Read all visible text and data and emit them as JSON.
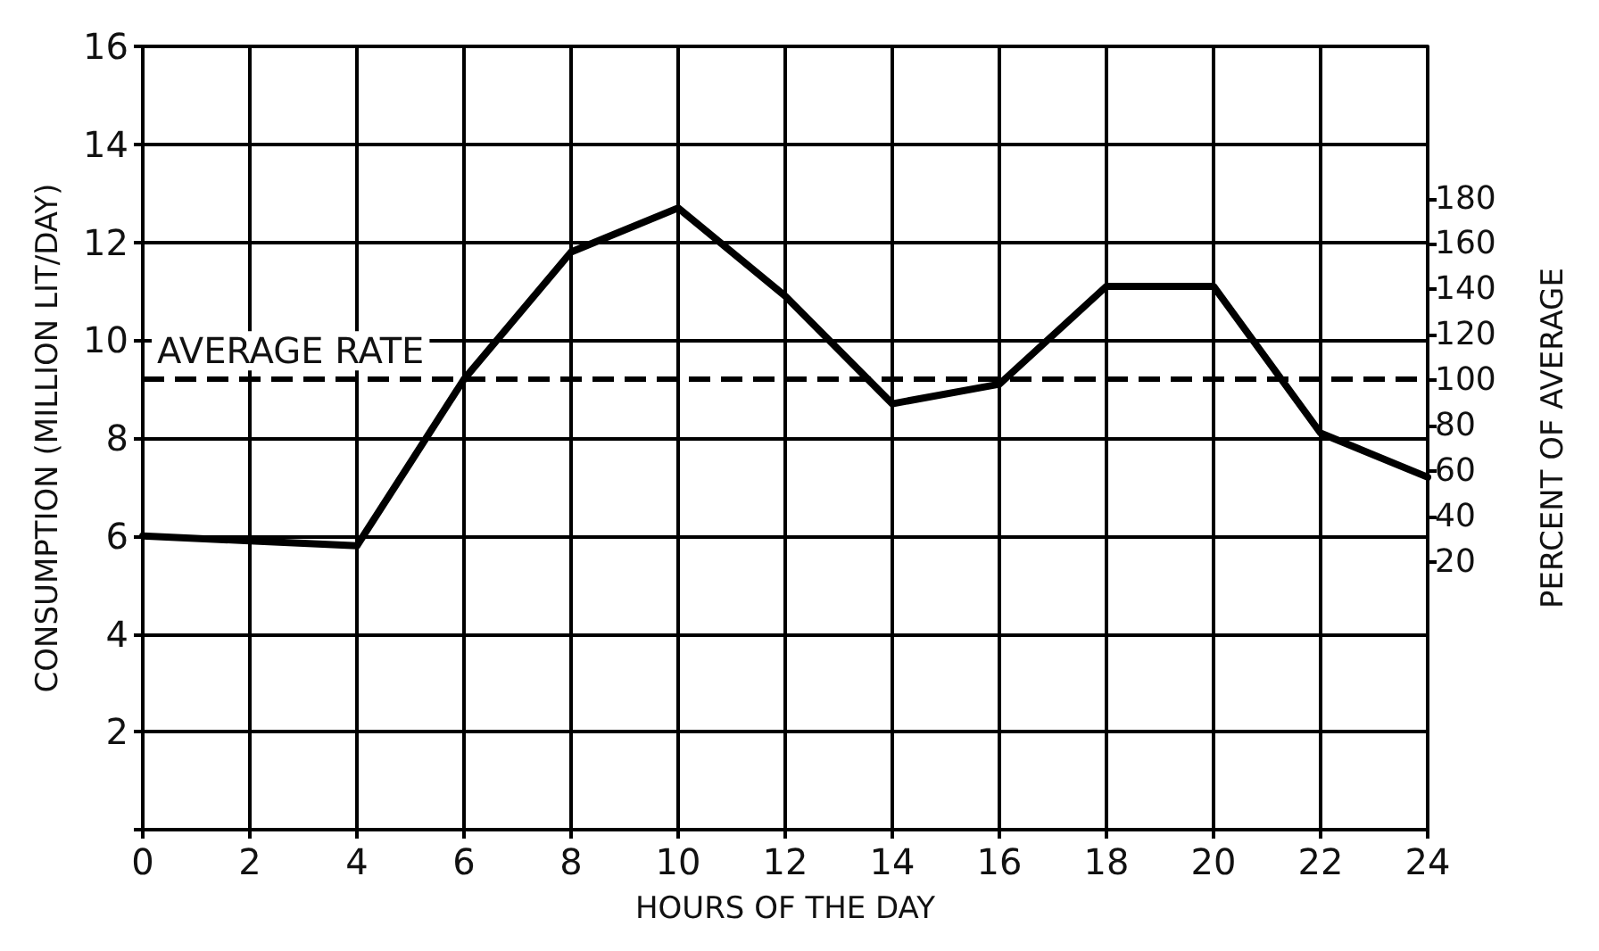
{
  "chart_data": {
    "type": "line",
    "xlabel": "HOURS OF THE DAY",
    "ylabel": "CONSUMPTION (MILLION LIT/DAY)",
    "y2label": "PERCENT OF AVERAGE",
    "x": [
      0,
      2,
      4,
      6,
      8,
      10,
      12,
      14,
      16,
      18,
      20,
      22,
      24
    ],
    "series": [
      {
        "color": "#000000",
        "values": [
          6.0,
          5.9,
          5.8,
          9.2,
          11.8,
          12.7,
          10.9,
          8.7,
          9.1,
          11.1,
          11.1,
          8.1,
          7.2
        ]
      }
    ],
    "xlim": [
      0,
      24
    ],
    "xticks": [
      0,
      2,
      4,
      6,
      8,
      10,
      12,
      14,
      16,
      18,
      20,
      22,
      24
    ],
    "ylim": [
      0,
      16
    ],
    "yticks": [
      {
        "value": 0,
        "label": null
      },
      2,
      4,
      6,
      8,
      10,
      12,
      14,
      16
    ],
    "y2lim": [
      -98,
      247
    ],
    "y2ticks": [
      20,
      40,
      60,
      80,
      100,
      120,
      140,
      160,
      180
    ],
    "ref_lines": [
      {
        "axis": "y",
        "value": 9.2,
        "label": "AVERAGE RATE",
        "color": "#000000",
        "line_style": "dashed"
      }
    ],
    "grid": true,
    "marker": "none",
    "line_style": "solid"
  }
}
